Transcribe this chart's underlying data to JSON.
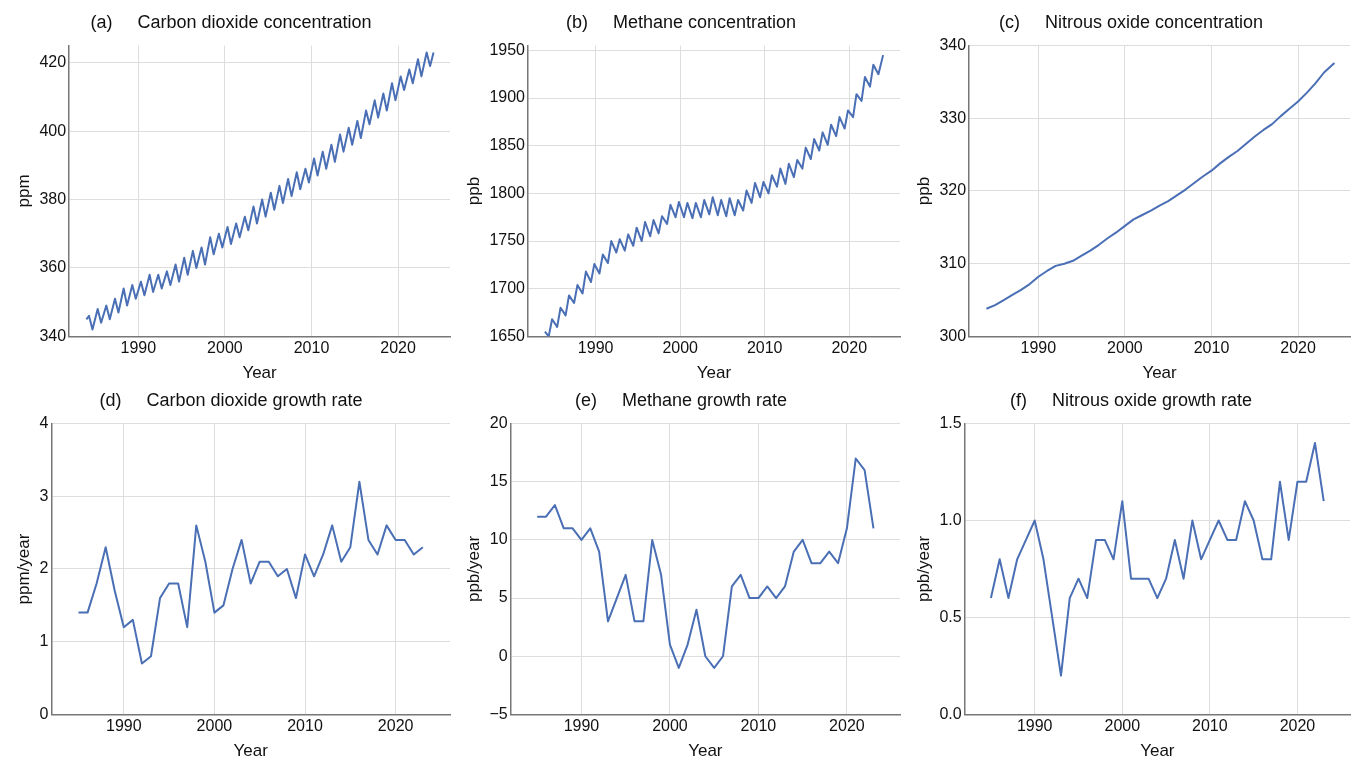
{
  "chart_data": [
    {
      "type": "line",
      "title": "(a)     Carbon dioxide concentration",
      "xlabel": "Year",
      "ylabel": "ppm",
      "color": "#4a6fb5",
      "marker": "none",
      "grid": true,
      "x": [
        1984.0,
        1984.3,
        1984.7,
        1985.3,
        1985.7,
        1986.3,
        1986.7,
        1987.3,
        1987.7,
        1988.3,
        1988.7,
        1989.3,
        1989.7,
        1990.3,
        1990.7,
        1991.3,
        1991.7,
        1992.3,
        1992.7,
        1993.3,
        1993.7,
        1994.3,
        1994.7,
        1995.3,
        1995.7,
        1996.3,
        1996.7,
        1997.3,
        1997.7,
        1998.3,
        1998.7,
        1999.3,
        1999.7,
        2000.3,
        2000.7,
        2001.3,
        2001.7,
        2002.3,
        2002.7,
        2003.3,
        2003.7,
        2004.3,
        2004.7,
        2005.3,
        2005.7,
        2006.3,
        2006.7,
        2007.3,
        2007.7,
        2008.3,
        2008.7,
        2009.3,
        2009.7,
        2010.3,
        2010.7,
        2011.3,
        2011.7,
        2012.3,
        2012.7,
        2013.3,
        2013.7,
        2014.3,
        2014.7,
        2015.3,
        2015.7,
        2016.3,
        2016.7,
        2017.3,
        2017.7,
        2018.3,
        2018.7,
        2019.3,
        2019.7,
        2020.3,
        2020.7,
        2021.3,
        2021.7,
        2022.3,
        2022.7,
        2023.3,
        2023.7,
        2024.1
      ],
      "values": [
        345,
        346,
        342,
        348,
        344,
        349,
        345,
        351,
        347,
        354,
        349,
        355,
        351,
        356,
        352,
        358,
        353,
        358,
        354,
        359,
        355,
        361,
        356,
        363,
        358,
        365,
        360,
        366,
        361,
        369,
        364,
        370,
        366,
        372,
        367,
        373,
        369,
        375,
        371,
        378,
        373,
        380,
        375,
        382,
        377,
        384,
        379,
        386,
        381,
        388,
        383,
        389,
        385,
        392,
        387,
        394,
        389,
        396,
        391,
        399,
        394,
        401,
        396,
        403,
        398,
        406,
        402,
        409,
        404,
        411,
        406,
        414,
        409,
        416,
        412,
        418,
        414,
        421,
        416,
        423,
        419,
        423
      ],
      "xlim": [
        1982,
        2026
      ],
      "xticks": [
        1990,
        2000,
        2010,
        2020
      ],
      "ylim": [
        340,
        425
      ],
      "yticks": [
        340,
        360,
        380,
        400,
        420
      ]
    },
    {
      "type": "line",
      "title": "(b)     Methane concentration",
      "xlabel": "Year",
      "ylabel": "ppb",
      "color": "#4a6fb5",
      "marker": "none",
      "grid": true,
      "x": [
        1984.0,
        1984.45,
        1984.85,
        1985.45,
        1985.85,
        1986.45,
        1986.85,
        1987.45,
        1987.85,
        1988.45,
        1988.85,
        1989.45,
        1989.85,
        1990.45,
        1990.85,
        1991.45,
        1991.85,
        1992.45,
        1992.85,
        1993.45,
        1993.85,
        1994.45,
        1994.85,
        1995.45,
        1995.85,
        1996.45,
        1996.85,
        1997.45,
        1997.85,
        1998.45,
        1998.85,
        1999.45,
        1999.85,
        2000.45,
        2000.85,
        2001.45,
        2001.85,
        2002.45,
        2002.85,
        2003.45,
        2003.85,
        2004.45,
        2004.85,
        2005.45,
        2005.85,
        2006.45,
        2006.85,
        2007.45,
        2007.85,
        2008.45,
        2008.85,
        2009.45,
        2009.85,
        2010.45,
        2010.85,
        2011.45,
        2011.85,
        2012.45,
        2012.85,
        2013.45,
        2013.85,
        2014.45,
        2014.85,
        2015.45,
        2015.85,
        2016.45,
        2016.85,
        2017.45,
        2017.85,
        2018.45,
        2018.85,
        2019.45,
        2019.85,
        2020.45,
        2020.85,
        2021.45,
        2021.85,
        2022.45,
        2022.85,
        2023.45,
        2024.0
      ],
      "values": [
        1655,
        1650,
        1668,
        1660,
        1680,
        1672,
        1693,
        1685,
        1704,
        1695,
        1718,
        1707,
        1726,
        1716,
        1736,
        1727,
        1750,
        1738,
        1752,
        1740,
        1757,
        1745,
        1764,
        1750,
        1770,
        1755,
        1772,
        1758,
        1776,
        1768,
        1788,
        1775,
        1791,
        1775,
        1790,
        1774,
        1790,
        1775,
        1793,
        1778,
        1796,
        1777,
        1793,
        1776,
        1795,
        1777,
        1793,
        1782,
        1803,
        1790,
        1811,
        1796,
        1812,
        1800,
        1819,
        1807,
        1826,
        1810,
        1831,
        1817,
        1835,
        1826,
        1848,
        1836,
        1857,
        1845,
        1864,
        1851,
        1872,
        1860,
        1880,
        1868,
        1887,
        1880,
        1904,
        1897,
        1922,
        1912,
        1935,
        1925,
        1945
      ],
      "xlim": [
        1982,
        2026
      ],
      "xticks": [
        1990,
        2000,
        2010,
        2020
      ],
      "ylim": [
        1650,
        1955
      ],
      "yticks": [
        1650,
        1700,
        1750,
        1800,
        1850,
        1900,
        1950
      ]
    },
    {
      "type": "line",
      "title": "(c)     Nitrous oxide concentration",
      "xlabel": "Year",
      "ylabel": "ppb",
      "color": "#4a6fb5",
      "marker": "none",
      "grid": true,
      "x": [
        1984.0,
        1985,
        1986,
        1987,
        1988,
        1989,
        1990,
        1991,
        1992,
        1993,
        1994,
        1995,
        1996,
        1997,
        1998,
        1999,
        2000,
        2001,
        2002,
        2003,
        2004,
        2005,
        2006,
        2007,
        2008,
        2009,
        2010,
        2011,
        2012,
        2013,
        2014,
        2015,
        2016,
        2017,
        2018,
        2019,
        2020,
        2021,
        2022,
        2023,
        2024.2
      ],
      "values": [
        303.8,
        304.3,
        305.0,
        305.7,
        306.4,
        307.2,
        308.2,
        309.0,
        309.7,
        310.0,
        310.4,
        311.1,
        311.8,
        312.6,
        313.5,
        314.3,
        315.2,
        316.1,
        316.7,
        317.3,
        318.0,
        318.6,
        319.4,
        320.2,
        321.1,
        322.0,
        322.8,
        323.8,
        324.7,
        325.5,
        326.5,
        327.5,
        328.4,
        329.2,
        330.3,
        331.3,
        332.3,
        333.5,
        334.8,
        336.3,
        337.6
      ],
      "xlim": [
        1982,
        2026
      ],
      "xticks": [
        1990,
        2000,
        2010,
        2020
      ],
      "ylim": [
        300,
        340
      ],
      "yticks": [
        300,
        310,
        320,
        330,
        340
      ]
    },
    {
      "type": "line",
      "title": "(d)     Carbon dioxide growth rate",
      "xlabel": "Year",
      "ylabel": "ppm/year",
      "color": "#4a6fb5",
      "marker": "none",
      "grid": true,
      "x": [
        1985,
        1986,
        1987,
        1988,
        1989,
        1990,
        1991,
        1992,
        1993,
        1994,
        1995,
        1996,
        1997,
        1998,
        1999,
        2000,
        2001,
        2002,
        2003,
        2004,
        2005,
        2006,
        2007,
        2008,
        2009,
        2010,
        2011,
        2012,
        2013,
        2014,
        2015,
        2016,
        2017,
        2018,
        2019,
        2020,
        2021,
        2022,
        2023
      ],
      "values": [
        1.4,
        1.4,
        1.8,
        2.3,
        1.7,
        1.2,
        1.3,
        0.7,
        0.8,
        1.6,
        1.8,
        1.8,
        1.2,
        2.6,
        2.1,
        1.4,
        1.5,
        2.0,
        2.4,
        1.8,
        2.1,
        2.1,
        1.9,
        2.0,
        1.6,
        2.2,
        1.9,
        2.2,
        2.6,
        2.1,
        2.3,
        3.2,
        2.4,
        2.2,
        2.6,
        2.4,
        2.4,
        2.2,
        2.3
      ],
      "xlim": [
        1982,
        2026
      ],
      "xticks": [
        1990,
        2000,
        2010,
        2020
      ],
      "ylim": [
        0,
        4
      ],
      "yticks": [
        0,
        1,
        2,
        3,
        4
      ]
    },
    {
      "type": "line",
      "title": "(e)     Methane growth rate",
      "xlabel": "Year",
      "ylabel": "ppb/year",
      "color": "#4a6fb5",
      "marker": "none",
      "grid": true,
      "x": [
        1985,
        1986,
        1987,
        1988,
        1989,
        1990,
        1991,
        1992,
        1993,
        1994,
        1995,
        1996,
        1997,
        1998,
        1999,
        2000,
        2001,
        2002,
        2003,
        2004,
        2005,
        2006,
        2007,
        2008,
        2009,
        2010,
        2011,
        2012,
        2013,
        2014,
        2015,
        2016,
        2017,
        2018,
        2019,
        2020,
        2021,
        2022,
        2023
      ],
      "values": [
        12,
        12,
        13,
        11,
        11,
        10,
        11,
        9,
        3,
        5,
        7,
        3,
        3,
        10,
        7,
        1,
        -1,
        1,
        4,
        0,
        -1,
        0,
        6,
        7,
        5,
        5,
        6,
        5,
        6,
        9,
        10,
        8,
        8,
        9,
        8,
        11,
        17,
        16,
        11
      ],
      "xlim": [
        1982,
        2026
      ],
      "xticks": [
        1990,
        2000,
        2010,
        2020
      ],
      "ylim": [
        -5,
        20
      ],
      "yticks": [
        {
          "value": -5,
          "label": "−5"
        },
        0,
        5,
        10,
        15,
        20
      ]
    },
    {
      "type": "line",
      "title": "(f)     Nitrous oxide growth rate",
      "xlabel": "Year",
      "ylabel": "ppb/year",
      "color": "#4a6fb5",
      "marker": "none",
      "grid": true,
      "x": [
        1985,
        1986,
        1987,
        1988,
        1989,
        1990,
        1991,
        1992,
        1993,
        1994,
        1995,
        1996,
        1997,
        1998,
        1999,
        2000,
        2001,
        2002,
        2003,
        2004,
        2005,
        2006,
        2007,
        2008,
        2009,
        2010,
        2011,
        2012,
        2013,
        2014,
        2015,
        2016,
        2017,
        2018,
        2019,
        2020,
        2021,
        2022,
        2023
      ],
      "values": [
        0.6,
        0.8,
        0.6,
        0.8,
        0.9,
        1.0,
        0.8,
        0.5,
        0.2,
        0.6,
        0.7,
        0.6,
        0.9,
        0.9,
        0.8,
        1.1,
        0.7,
        0.7,
        0.7,
        0.6,
        0.7,
        0.9,
        0.7,
        1.0,
        0.8,
        0.9,
        1.0,
        0.9,
        0.9,
        1.1,
        1.0,
        0.8,
        0.8,
        1.2,
        0.9,
        1.2,
        1.2,
        1.4,
        1.1
      ],
      "xlim": [
        1982,
        2026
      ],
      "xticks": [
        1990,
        2000,
        2010,
        2020
      ],
      "ylim": [
        0,
        1.5
      ],
      "yticks": [
        {
          "value": 0,
          "label": "0.0"
        },
        {
          "value": 0.5,
          "label": "0.5"
        },
        {
          "value": 1,
          "label": "1.0"
        },
        {
          "value": 1.5,
          "label": "1.5"
        }
      ]
    }
  ]
}
